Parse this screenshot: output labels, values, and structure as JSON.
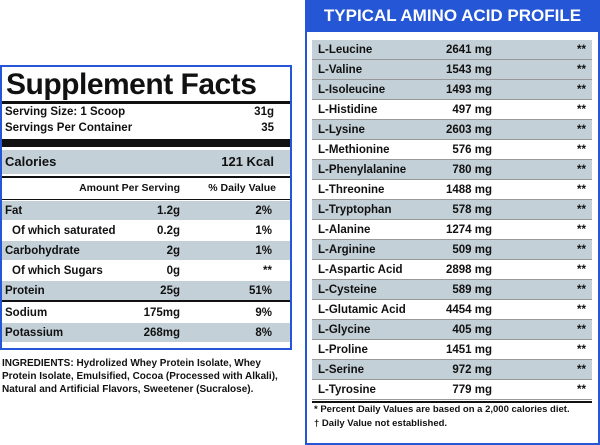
{
  "supplement_facts": {
    "title": "Supplement Facts",
    "serving_size": {
      "label": "Serving Size: 1 Scoop",
      "value": "31g"
    },
    "servings": {
      "label": "Servings Per Container",
      "value": "35"
    },
    "calories": {
      "label": "Calories",
      "value": "121 Kcal"
    },
    "columns": [
      "Amount Per Serving",
      "% Daily Value"
    ],
    "rows": [
      [
        "Fat",
        "1.2g",
        "2%"
      ],
      [
        "Of which saturated",
        "0.2g",
        "1%"
      ],
      [
        "Carbohydrate",
        "2g",
        "1%"
      ],
      [
        "Of which Sugars",
        "0g",
        "**"
      ],
      [
        "Protein",
        "25g",
        "51%"
      ],
      [
        "Sodium",
        "175mg",
        "9%"
      ],
      [
        "Potassium",
        "268mg",
        "8%"
      ]
    ]
  },
  "ingredients": {
    "label": "INGREDIENTS:",
    "text": "Hydrolized  Whey Protein Isolate, Whey Protein Isolate, Emulsified, Cocoa (Processed with Alkali), Natural and Artificial Flavors, Sweetener (Sucralose)."
  },
  "amino_profile": {
    "title": "TYPICAL AMINO ACID PROFILE",
    "rows": [
      [
        "L-Leucine",
        "2641 mg",
        "**"
      ],
      [
        "L-Valine",
        "1543 mg",
        "**"
      ],
      [
        "L-Isoleucine",
        "1493 mg",
        "**"
      ],
      [
        "L-Histidine",
        "497 mg",
        "**"
      ],
      [
        "L-Lysine",
        "2603 mg",
        "**"
      ],
      [
        "L-Methionine",
        "576 mg",
        "**"
      ],
      [
        "L-Phenylalanine",
        "780 mg",
        "**"
      ],
      [
        "L-Threonine",
        "1488 mg",
        "**"
      ],
      [
        "L-Tryptophan",
        "578 mg",
        "**"
      ],
      [
        "L-Alanine",
        "1274 mg",
        "**"
      ],
      [
        "L-Arginine",
        "509 mg",
        "**"
      ],
      [
        "L-Aspartic Acid",
        "2898 mg",
        "**"
      ],
      [
        "L-Cysteine",
        "589 mg",
        "**"
      ],
      [
        "L-Glutamic Acid",
        "4454 mg",
        "**"
      ],
      [
        "L-Glycine",
        "405 mg",
        "**"
      ],
      [
        "L-Proline",
        "1451 mg",
        "**"
      ],
      [
        "L-Serine",
        "972 mg",
        "**"
      ],
      [
        "L-Tyrosine",
        "779 mg",
        "**"
      ]
    ],
    "footnotes": [
      "* Percent Daily Values are based on a 2,000 calories diet.",
      "† Daily Value not established."
    ]
  }
}
